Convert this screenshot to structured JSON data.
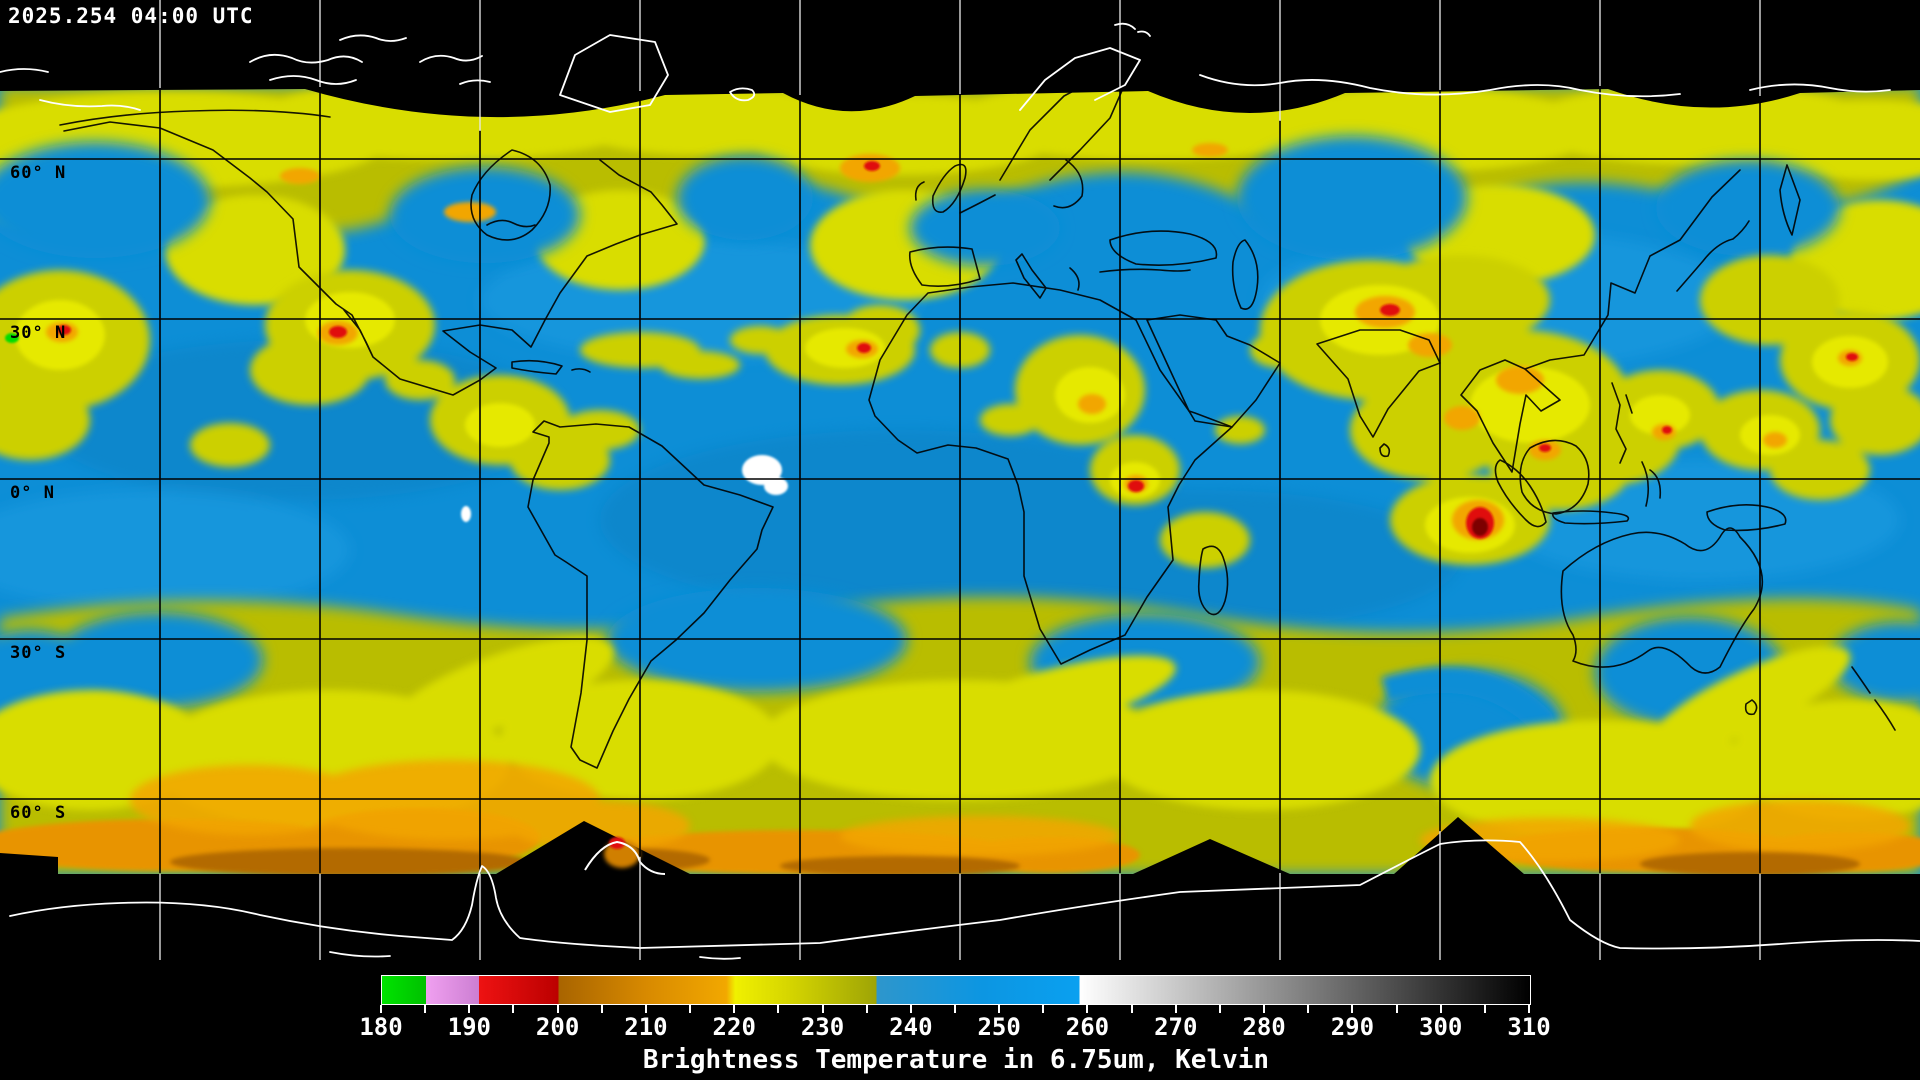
{
  "header": {
    "timestamp": "2025.254 04:00 UTC"
  },
  "map": {
    "latitude_labels": [
      {
        "id": "60n",
        "text": "60° N"
      },
      {
        "id": "30n",
        "text": "30° N"
      },
      {
        "id": "0n",
        "text": "0° N"
      },
      {
        "id": "30s",
        "text": "30° S"
      },
      {
        "id": "60s",
        "text": "60° S"
      }
    ],
    "grid": {
      "lat_step_deg": 30,
      "lon_step_deg": 30
    }
  },
  "colorbar": {
    "title": "Brightness Temperature in 6.75um, Kelvin",
    "min_k": 180,
    "max_k": 310,
    "tick_step_k": 5,
    "label_step_k": 10,
    "labels": [
      "180",
      "190",
      "200",
      "210",
      "220",
      "230",
      "240",
      "250",
      "260",
      "270",
      "280",
      "290",
      "300",
      "310"
    ],
    "gradient_stops": [
      {
        "k": 180,
        "color": "#00e400"
      },
      {
        "k": 185,
        "color": "#00c000"
      },
      {
        "k": 185,
        "color": "#f0a0f0"
      },
      {
        "k": 191,
        "color": "#cc7ed2"
      },
      {
        "k": 191,
        "color": "#ee1212"
      },
      {
        "k": 200,
        "color": "#bb0000"
      },
      {
        "k": 200,
        "color": "#a86400"
      },
      {
        "k": 210,
        "color": "#d88a00"
      },
      {
        "k": 219,
        "color": "#f2a800"
      },
      {
        "k": 220,
        "color": "#f0f000"
      },
      {
        "k": 226,
        "color": "#d6d600"
      },
      {
        "k": 236,
        "color": "#9ea406"
      },
      {
        "k": 236,
        "color": "#2e96cc"
      },
      {
        "k": 248,
        "color": "#0c96e2"
      },
      {
        "k": 259,
        "color": "#0aa0f0"
      },
      {
        "k": 259,
        "color": "#ffffff"
      },
      {
        "k": 310,
        "color": "#000000"
      }
    ]
  },
  "map_colors": {
    "dry_air_blue": "#0d8ed6",
    "moist_yellow": "#ccd000",
    "olive": "#b9bd00",
    "cold_cloud_orange": "#f2a600",
    "very_cold_red": "#e01111",
    "extreme_cold_darkred": "#7d0000",
    "no_data_background": "#000000",
    "coastline_on_data": "#000000",
    "coastline_on_void": "#ffffff"
  }
}
